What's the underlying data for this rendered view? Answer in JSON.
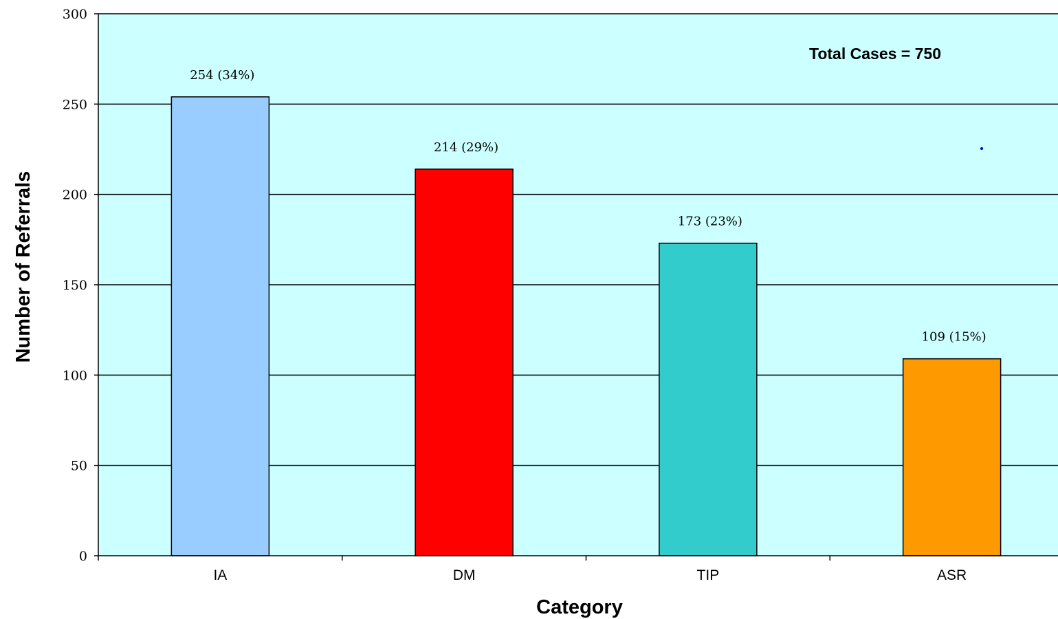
{
  "chart_data": {
    "type": "bar",
    "title": "",
    "xlabel": "Category",
    "ylabel": "Number of Referrals",
    "categories": [
      "IA",
      "DM",
      "TIP",
      "ASR"
    ],
    "values": [
      254,
      214,
      173,
      109
    ],
    "data_labels": [
      "254 (34%)",
      "214 (29%)",
      "173 (23%)",
      "109 (15%)"
    ],
    "ylim": [
      0,
      300
    ],
    "yticks": [
      0,
      50,
      100,
      150,
      200,
      250,
      300
    ],
    "ytick_labels": [
      "0",
      "50",
      "100",
      "150",
      "200",
      "250",
      "300"
    ],
    "grid": true,
    "legend": "none",
    "annotation": "Total Cases = 750",
    "colors": {
      "plot_background": "#ccffff",
      "bars": [
        "#99ccff",
        "#ff0000",
        "#33cccc",
        "#ff9900"
      ],
      "gridline": "#000000",
      "bar_outline": "#000000"
    }
  }
}
